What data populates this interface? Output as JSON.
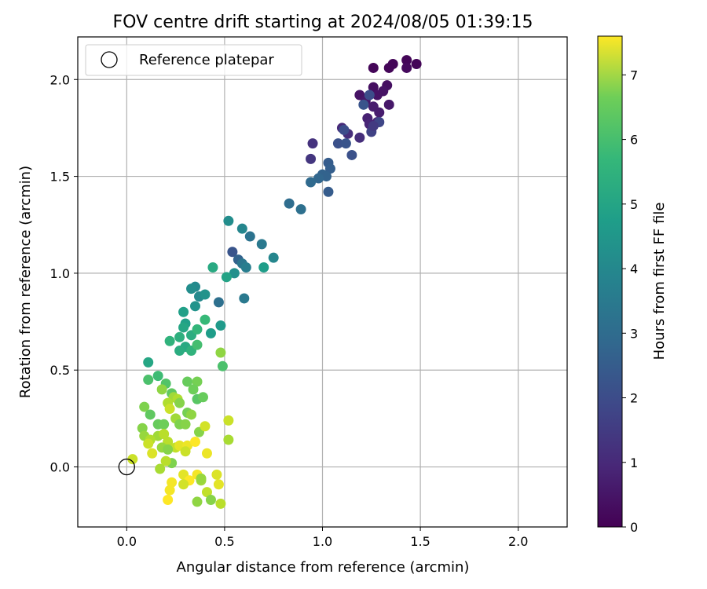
{
  "chart_data": {
    "type": "scatter",
    "title": "FOV centre drift starting at 2024/08/05 01:39:15",
    "xlabel": "Angular distance from reference (arcmin)",
    "ylabel": "Rotation from reference (arcmin)",
    "xlim": [
      -0.25,
      2.25
    ],
    "ylim": [
      -0.31,
      2.22
    ],
    "xticks": [
      0.0,
      0.5,
      1.0,
      1.5,
      2.0
    ],
    "xtick_labels": [
      "0.0",
      "0.5",
      "1.0",
      "1.5",
      "2.0"
    ],
    "yticks": [
      0.0,
      0.5,
      1.0,
      1.5,
      2.0
    ],
    "ytick_labels": [
      "0.0",
      "0.5",
      "1.0",
      "1.5",
      "2.0"
    ],
    "grid": true,
    "legend": {
      "position": "top-left",
      "entries": [
        "Reference platepar"
      ]
    },
    "reference_point": {
      "name": "Reference platepar",
      "x": 0.0,
      "y": 0.0,
      "marker": "open-circle"
    },
    "colorbar": {
      "label": "Hours from first FF file",
      "colormap": "viridis",
      "range": [
        0,
        7.6
      ],
      "ticks": [
        0,
        1,
        2,
        3,
        4,
        5,
        6,
        7
      ],
      "tick_labels": [
        "0",
        "1",
        "2",
        "3",
        "4",
        "5",
        "6",
        "7"
      ]
    },
    "series": [
      {
        "color_by": "hours",
        "points": [
          {
            "x": 1.26,
            "y": 2.06,
            "c": 0.1
          },
          {
            "x": 1.34,
            "y": 2.06,
            "c": 0.1
          },
          {
            "x": 1.36,
            "y": 2.08,
            "c": 0.1
          },
          {
            "x": 1.43,
            "y": 2.1,
            "c": 0.1
          },
          {
            "x": 1.48,
            "y": 2.08,
            "c": 0.1
          },
          {
            "x": 1.43,
            "y": 2.06,
            "c": 0.2
          },
          {
            "x": 1.26,
            "y": 1.96,
            "c": 0.3
          },
          {
            "x": 1.33,
            "y": 1.97,
            "c": 0.3
          },
          {
            "x": 1.31,
            "y": 1.94,
            "c": 0.4
          },
          {
            "x": 1.19,
            "y": 1.92,
            "c": 0.4
          },
          {
            "x": 1.28,
            "y": 1.92,
            "c": 0.4
          },
          {
            "x": 1.22,
            "y": 1.89,
            "c": 0.5
          },
          {
            "x": 1.34,
            "y": 1.87,
            "c": 0.5
          },
          {
            "x": 1.26,
            "y": 1.86,
            "c": 0.6
          },
          {
            "x": 1.29,
            "y": 1.83,
            "c": 0.6
          },
          {
            "x": 1.23,
            "y": 1.8,
            "c": 0.7
          },
          {
            "x": 1.28,
            "y": 1.78,
            "c": 0.8
          },
          {
            "x": 1.24,
            "y": 1.77,
            "c": 0.8
          },
          {
            "x": 1.1,
            "y": 1.75,
            "c": 0.9
          },
          {
            "x": 1.13,
            "y": 1.72,
            "c": 1.0
          },
          {
            "x": 1.19,
            "y": 1.7,
            "c": 1.0
          },
          {
            "x": 0.95,
            "y": 1.67,
            "c": 1.1
          },
          {
            "x": 0.94,
            "y": 1.59,
            "c": 1.2
          },
          {
            "x": 1.25,
            "y": 1.73,
            "c": 1.5
          },
          {
            "x": 1.29,
            "y": 1.78,
            "c": 1.6
          },
          {
            "x": 1.26,
            "y": 1.76,
            "c": 1.3
          },
          {
            "x": 1.24,
            "y": 1.92,
            "c": 1.8
          },
          {
            "x": 1.21,
            "y": 1.87,
            "c": 2.0
          },
          {
            "x": 1.11,
            "y": 1.74,
            "c": 1.8
          },
          {
            "x": 1.08,
            "y": 1.67,
            "c": 1.9
          },
          {
            "x": 1.12,
            "y": 1.67,
            "c": 2.0
          },
          {
            "x": 1.15,
            "y": 1.61,
            "c": 1.9
          },
          {
            "x": 1.03,
            "y": 1.57,
            "c": 2.2
          },
          {
            "x": 1.04,
            "y": 1.54,
            "c": 2.3
          },
          {
            "x": 1.0,
            "y": 1.51,
            "c": 2.4
          },
          {
            "x": 1.02,
            "y": 1.5,
            "c": 2.4
          },
          {
            "x": 0.98,
            "y": 1.49,
            "c": 2.5
          },
          {
            "x": 0.94,
            "y": 1.47,
            "c": 2.6
          },
          {
            "x": 1.03,
            "y": 1.42,
            "c": 2.2
          },
          {
            "x": 0.83,
            "y": 1.36,
            "c": 2.7
          },
          {
            "x": 0.89,
            "y": 1.33,
            "c": 2.8
          },
          {
            "x": 0.54,
            "y": 1.11,
            "c": 2.0
          },
          {
            "x": 0.57,
            "y": 1.07,
            "c": 2.4
          },
          {
            "x": 0.63,
            "y": 1.19,
            "c": 2.9
          },
          {
            "x": 0.69,
            "y": 1.15,
            "c": 3.1
          },
          {
            "x": 0.59,
            "y": 1.05,
            "c": 3.0
          },
          {
            "x": 0.61,
            "y": 1.03,
            "c": 3.2
          },
          {
            "x": 0.6,
            "y": 0.87,
            "c": 3.1
          },
          {
            "x": 0.47,
            "y": 0.85,
            "c": 2.8
          },
          {
            "x": 0.59,
            "y": 1.23,
            "c": 3.5
          },
          {
            "x": 0.52,
            "y": 1.27,
            "c": 3.7
          },
          {
            "x": 0.75,
            "y": 1.08,
            "c": 3.5
          },
          {
            "x": 0.7,
            "y": 1.03,
            "c": 4.2
          },
          {
            "x": 0.55,
            "y": 1.0,
            "c": 3.8
          },
          {
            "x": 0.51,
            "y": 0.98,
            "c": 4.4
          },
          {
            "x": 0.44,
            "y": 1.03,
            "c": 4.6
          },
          {
            "x": 0.35,
            "y": 0.93,
            "c": 3.6
          },
          {
            "x": 0.33,
            "y": 0.92,
            "c": 3.7
          },
          {
            "x": 0.37,
            "y": 0.88,
            "c": 3.6
          },
          {
            "x": 0.4,
            "y": 0.89,
            "c": 3.9
          },
          {
            "x": 0.35,
            "y": 0.83,
            "c": 3.9
          },
          {
            "x": 0.29,
            "y": 0.8,
            "c": 4.3
          },
          {
            "x": 0.3,
            "y": 0.74,
            "c": 4.3
          },
          {
            "x": 0.29,
            "y": 0.72,
            "c": 4.5
          },
          {
            "x": 0.27,
            "y": 0.67,
            "c": 4.8
          },
          {
            "x": 0.33,
            "y": 0.68,
            "c": 4.7
          },
          {
            "x": 0.36,
            "y": 0.71,
            "c": 5.0
          },
          {
            "x": 0.43,
            "y": 0.69,
            "c": 4.2
          },
          {
            "x": 0.48,
            "y": 0.73,
            "c": 4.1
          },
          {
            "x": 0.4,
            "y": 0.76,
            "c": 5.1
          },
          {
            "x": 0.3,
            "y": 0.62,
            "c": 4.6
          },
          {
            "x": 0.27,
            "y": 0.6,
            "c": 4.7
          },
          {
            "x": 0.33,
            "y": 0.6,
            "c": 4.9
          },
          {
            "x": 0.36,
            "y": 0.63,
            "c": 5.3
          },
          {
            "x": 0.22,
            "y": 0.65,
            "c": 4.9
          },
          {
            "x": 0.11,
            "y": 0.54,
            "c": 4.5
          },
          {
            "x": 0.49,
            "y": 0.52,
            "c": 5.4
          },
          {
            "x": 0.48,
            "y": 0.59,
            "c": 6.3
          },
          {
            "x": 0.16,
            "y": 0.47,
            "c": 5.2
          },
          {
            "x": 0.11,
            "y": 0.45,
            "c": 5.4
          },
          {
            "x": 0.2,
            "y": 0.43,
            "c": 5.5
          },
          {
            "x": 0.23,
            "y": 0.38,
            "c": 5.7
          },
          {
            "x": 0.31,
            "y": 0.44,
            "c": 5.8
          },
          {
            "x": 0.36,
            "y": 0.44,
            "c": 6.0
          },
          {
            "x": 0.34,
            "y": 0.4,
            "c": 5.9
          },
          {
            "x": 0.18,
            "y": 0.4,
            "c": 6.3
          },
          {
            "x": 0.24,
            "y": 0.36,
            "c": 6.5
          },
          {
            "x": 0.26,
            "y": 0.35,
            "c": 6.7
          },
          {
            "x": 0.36,
            "y": 0.35,
            "c": 5.6
          },
          {
            "x": 0.39,
            "y": 0.36,
            "c": 5.8
          },
          {
            "x": 0.27,
            "y": 0.33,
            "c": 6.2
          },
          {
            "x": 0.21,
            "y": 0.33,
            "c": 6.7
          },
          {
            "x": 0.09,
            "y": 0.31,
            "c": 6.1
          },
          {
            "x": 0.12,
            "y": 0.27,
            "c": 5.7
          },
          {
            "x": 0.31,
            "y": 0.28,
            "c": 6.0
          },
          {
            "x": 0.33,
            "y": 0.27,
            "c": 6.3
          },
          {
            "x": 0.22,
            "y": 0.3,
            "c": 7.0
          },
          {
            "x": 0.25,
            "y": 0.25,
            "c": 6.5
          },
          {
            "x": 0.16,
            "y": 0.22,
            "c": 5.8
          },
          {
            "x": 0.19,
            "y": 0.22,
            "c": 5.9
          },
          {
            "x": 0.27,
            "y": 0.22,
            "c": 6.1
          },
          {
            "x": 0.3,
            "y": 0.22,
            "c": 6.2
          },
          {
            "x": 0.37,
            "y": 0.18,
            "c": 6.2
          },
          {
            "x": 0.08,
            "y": 0.2,
            "c": 6.2
          },
          {
            "x": 0.09,
            "y": 0.16,
            "c": 6.4
          },
          {
            "x": 0.16,
            "y": 0.16,
            "c": 6.5
          },
          {
            "x": 0.19,
            "y": 0.17,
            "c": 6.8
          },
          {
            "x": 0.12,
            "y": 0.14,
            "c": 6.7
          },
          {
            "x": 0.11,
            "y": 0.12,
            "c": 7.0
          },
          {
            "x": 0.21,
            "y": 0.13,
            "c": 6.8
          },
          {
            "x": 0.25,
            "y": 0.1,
            "c": 6.9
          },
          {
            "x": 0.18,
            "y": 0.1,
            "c": 6.4
          },
          {
            "x": 0.21,
            "y": 0.09,
            "c": 6.2
          },
          {
            "x": 0.27,
            "y": 0.11,
            "c": 7.3
          },
          {
            "x": 0.31,
            "y": 0.11,
            "c": 7.4
          },
          {
            "x": 0.3,
            "y": 0.08,
            "c": 7.0
          },
          {
            "x": 0.35,
            "y": 0.13,
            "c": 7.6
          },
          {
            "x": 0.13,
            "y": 0.07,
            "c": 7.2
          },
          {
            "x": 0.4,
            "y": 0.21,
            "c": 7.1
          },
          {
            "x": 0.52,
            "y": 0.24,
            "c": 7.0
          },
          {
            "x": 0.52,
            "y": 0.14,
            "c": 6.6
          },
          {
            "x": 0.41,
            "y": 0.07,
            "c": 7.4
          },
          {
            "x": 0.23,
            "y": 0.02,
            "c": 6.1
          },
          {
            "x": 0.2,
            "y": 0.03,
            "c": 6.8
          },
          {
            "x": 0.17,
            "y": -0.01,
            "c": 6.6
          },
          {
            "x": 0.03,
            "y": 0.04,
            "c": 7.0
          },
          {
            "x": 0.36,
            "y": -0.04,
            "c": 7.5
          },
          {
            "x": 0.29,
            "y": -0.04,
            "c": 7.3
          },
          {
            "x": 0.32,
            "y": -0.07,
            "c": 7.6
          },
          {
            "x": 0.38,
            "y": -0.07,
            "c": 6.5
          },
          {
            "x": 0.46,
            "y": -0.04,
            "c": 7.2
          },
          {
            "x": 0.29,
            "y": -0.09,
            "c": 7.1
          },
          {
            "x": 0.23,
            "y": -0.08,
            "c": 7.5
          },
          {
            "x": 0.47,
            "y": -0.09,
            "c": 7.3
          },
          {
            "x": 0.38,
            "y": -0.06,
            "c": 6.4
          },
          {
            "x": 0.22,
            "y": -0.12,
            "c": 7.5
          },
          {
            "x": 0.41,
            "y": -0.13,
            "c": 6.9
          },
          {
            "x": 0.21,
            "y": -0.17,
            "c": 7.6
          },
          {
            "x": 0.36,
            "y": -0.18,
            "c": 6.3
          },
          {
            "x": 0.43,
            "y": -0.17,
            "c": 6.2
          },
          {
            "x": 0.48,
            "y": -0.19,
            "c": 6.8
          }
        ]
      }
    ]
  }
}
